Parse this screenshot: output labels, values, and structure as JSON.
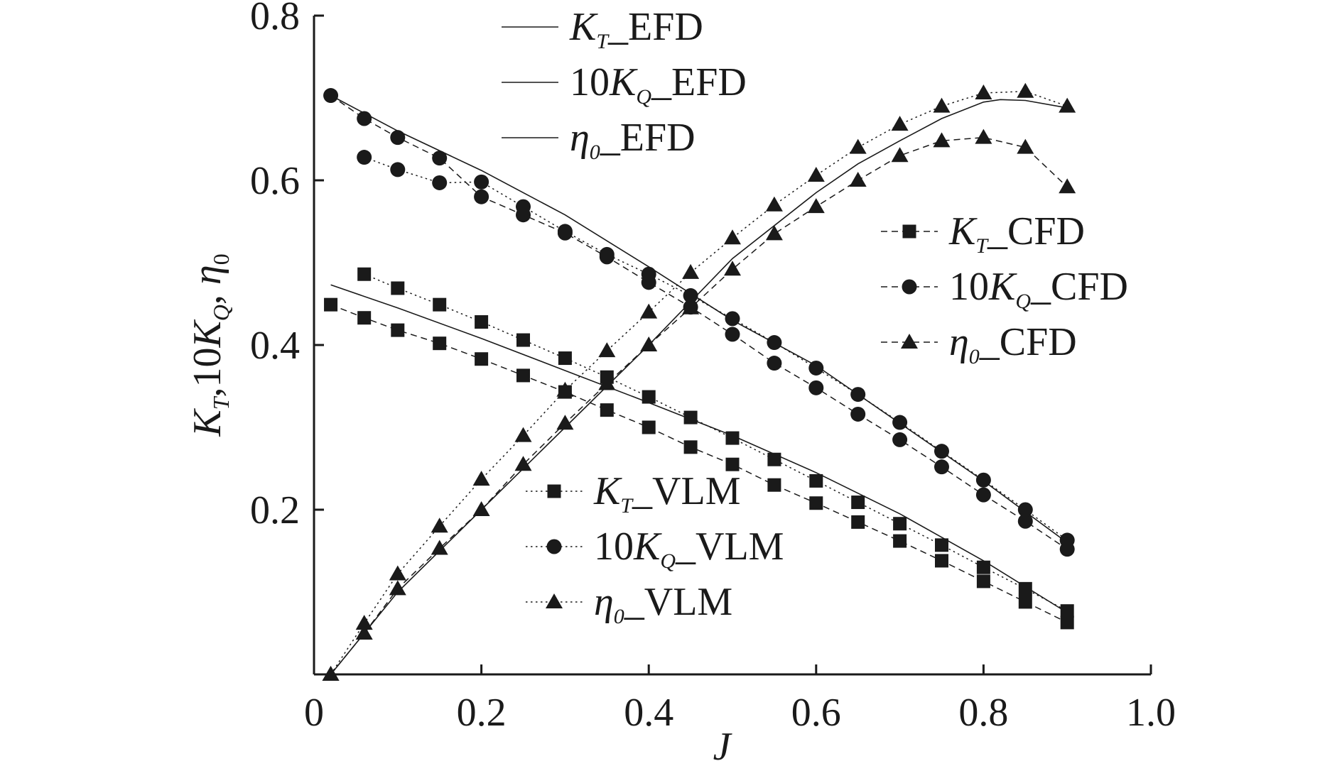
{
  "chart_data": {
    "type": "line",
    "title": "",
    "xlabel": "J",
    "ylabel": "K_T, 10K_Q, η_0",
    "xlim": [
      0,
      1.0
    ],
    "ylim": [
      0,
      0.8
    ],
    "xticks": [
      "0",
      "0.2",
      "0.4",
      "0.6",
      "0.8",
      "1.0"
    ],
    "yticks": [
      "0.2",
      "0.4",
      "0.6",
      "0.8"
    ],
    "grid": false,
    "legends": {
      "efd": {
        "position": "top-left",
        "entries": [
          "KT_EFD",
          "10KQ_EFD",
          "eta0_EFD"
        ]
      },
      "cfd": {
        "position": "right",
        "entries": [
          "KT_CFD",
          "10KQ_CFD",
          "eta0_CFD"
        ]
      },
      "vlm": {
        "position": "bottom-center",
        "entries": [
          "KT_VLM",
          "10KQ_VLM",
          "eta0_VLM"
        ]
      }
    },
    "series": [
      {
        "key": "KT_EFD",
        "name": "K_T_EFD",
        "pre": "",
        "sym": "K",
        "sub": "T",
        "post": "_EFD",
        "style": "solid",
        "marker": "none",
        "x": [
          0.02,
          0.1,
          0.2,
          0.3,
          0.4,
          0.5,
          0.6,
          0.7,
          0.8,
          0.9
        ],
        "y": [
          0.473,
          0.445,
          0.408,
          0.369,
          0.33,
          0.29,
          0.245,
          0.195,
          0.138,
          0.075
        ]
      },
      {
        "key": "10KQ_EFD",
        "name": "10K_Q_EFD",
        "pre": "10",
        "sym": "K",
        "sub": "Q",
        "post": "_EFD",
        "style": "solid",
        "marker": "none",
        "x": [
          0.02,
          0.1,
          0.2,
          0.3,
          0.4,
          0.5,
          0.6,
          0.7,
          0.8,
          0.9
        ],
        "y": [
          0.703,
          0.66,
          0.612,
          0.558,
          0.495,
          0.43,
          0.375,
          0.305,
          0.235,
          0.16
        ]
      },
      {
        "key": "eta0_EFD",
        "name": "η0_EFD",
        "pre": "",
        "sym": "η",
        "sub": "0",
        "post": "_EFD",
        "style": "solid",
        "marker": "none",
        "x": [
          0.02,
          0.1,
          0.2,
          0.3,
          0.4,
          0.5,
          0.6,
          0.65,
          0.7,
          0.75,
          0.8,
          0.82,
          0.85,
          0.9
        ],
        "y": [
          0.0,
          0.1,
          0.2,
          0.3,
          0.4,
          0.505,
          0.585,
          0.62,
          0.648,
          0.675,
          0.695,
          0.698,
          0.697,
          0.688
        ]
      },
      {
        "key": "KT_CFD",
        "name": "K_T_CFD",
        "pre": "",
        "sym": "K",
        "sub": "T",
        "post": "_CFD",
        "style": "dashed",
        "marker": "square",
        "x": [
          0.02,
          0.06,
          0.1,
          0.15,
          0.2,
          0.25,
          0.3,
          0.35,
          0.4,
          0.45,
          0.5,
          0.55,
          0.6,
          0.65,
          0.7,
          0.75,
          0.8,
          0.85,
          0.9
        ],
        "y": [
          0.449,
          0.433,
          0.418,
          0.402,
          0.383,
          0.363,
          0.343,
          0.321,
          0.3,
          0.276,
          0.255,
          0.23,
          0.208,
          0.185,
          0.162,
          0.138,
          0.113,
          0.088,
          0.063
        ]
      },
      {
        "key": "10KQ_CFD",
        "name": "10K_Q_CFD",
        "pre": "10",
        "sym": "K",
        "sub": "Q",
        "post": "_CFD",
        "style": "dashed",
        "marker": "circle",
        "x": [
          0.02,
          0.06,
          0.1,
          0.15,
          0.2,
          0.25,
          0.3,
          0.35,
          0.4,
          0.45,
          0.5,
          0.55,
          0.6,
          0.65,
          0.7,
          0.75,
          0.8,
          0.85,
          0.9
        ],
        "y": [
          0.703,
          0.675,
          0.652,
          0.627,
          0.58,
          0.558,
          0.536,
          0.507,
          0.476,
          0.446,
          0.413,
          0.378,
          0.348,
          0.316,
          0.285,
          0.252,
          0.218,
          0.186,
          0.152
        ]
      },
      {
        "key": "eta0_CFD",
        "name": "η0_CFD",
        "pre": "",
        "sym": "η",
        "sub": "0",
        "post": "_CFD",
        "style": "dashed",
        "marker": "triangle",
        "x": [
          0.02,
          0.06,
          0.1,
          0.15,
          0.2,
          0.25,
          0.3,
          0.35,
          0.4,
          0.45,
          0.5,
          0.55,
          0.6,
          0.65,
          0.7,
          0.75,
          0.8,
          0.85,
          0.9
        ],
        "y": [
          0.0,
          0.05,
          0.104,
          0.153,
          0.2,
          0.255,
          0.305,
          0.353,
          0.4,
          0.445,
          0.492,
          0.535,
          0.568,
          0.6,
          0.63,
          0.648,
          0.652,
          0.64,
          0.592
        ]
      },
      {
        "key": "KT_VLM",
        "name": "K_T_VLM",
        "pre": "",
        "sym": "K",
        "sub": "T",
        "post": "_VLM",
        "style": "dotted",
        "marker": "square",
        "x": [
          0.06,
          0.1,
          0.15,
          0.2,
          0.25,
          0.3,
          0.35,
          0.4,
          0.45,
          0.5,
          0.55,
          0.6,
          0.65,
          0.7,
          0.75,
          0.8,
          0.85,
          0.9
        ],
        "y": [
          0.486,
          0.469,
          0.449,
          0.428,
          0.406,
          0.384,
          0.361,
          0.337,
          0.312,
          0.287,
          0.261,
          0.235,
          0.209,
          0.183,
          0.157,
          0.13,
          0.104,
          0.077
        ]
      },
      {
        "key": "10KQ_VLM",
        "name": "10K_Q_VLM",
        "pre": "10",
        "sym": "K",
        "sub": "Q",
        "post": "_VLM",
        "style": "dotted",
        "marker": "circle",
        "x": [
          0.06,
          0.1,
          0.15,
          0.2,
          0.25,
          0.3,
          0.35,
          0.4,
          0.45,
          0.5,
          0.55,
          0.6,
          0.65,
          0.7,
          0.75,
          0.8,
          0.85,
          0.9
        ],
        "y": [
          0.628,
          0.613,
          0.597,
          0.598,
          0.568,
          0.538,
          0.51,
          0.486,
          0.46,
          0.432,
          0.403,
          0.372,
          0.34,
          0.306,
          0.271,
          0.236,
          0.2,
          0.163
        ]
      },
      {
        "key": "eta0_VLM",
        "name": "η0_VLM",
        "pre": "",
        "sym": "η",
        "sub": "0",
        "post": "_VLM",
        "style": "dotted",
        "marker": "triangle",
        "x": [
          0.02,
          0.06,
          0.1,
          0.15,
          0.2,
          0.25,
          0.3,
          0.35,
          0.4,
          0.45,
          0.5,
          0.55,
          0.6,
          0.65,
          0.7,
          0.75,
          0.8,
          0.85,
          0.9
        ],
        "y": [
          0.0,
          0.062,
          0.122,
          0.18,
          0.237,
          0.29,
          0.345,
          0.393,
          0.44,
          0.488,
          0.53,
          0.57,
          0.606,
          0.64,
          0.668,
          0.69,
          0.706,
          0.708,
          0.69
        ]
      }
    ]
  }
}
